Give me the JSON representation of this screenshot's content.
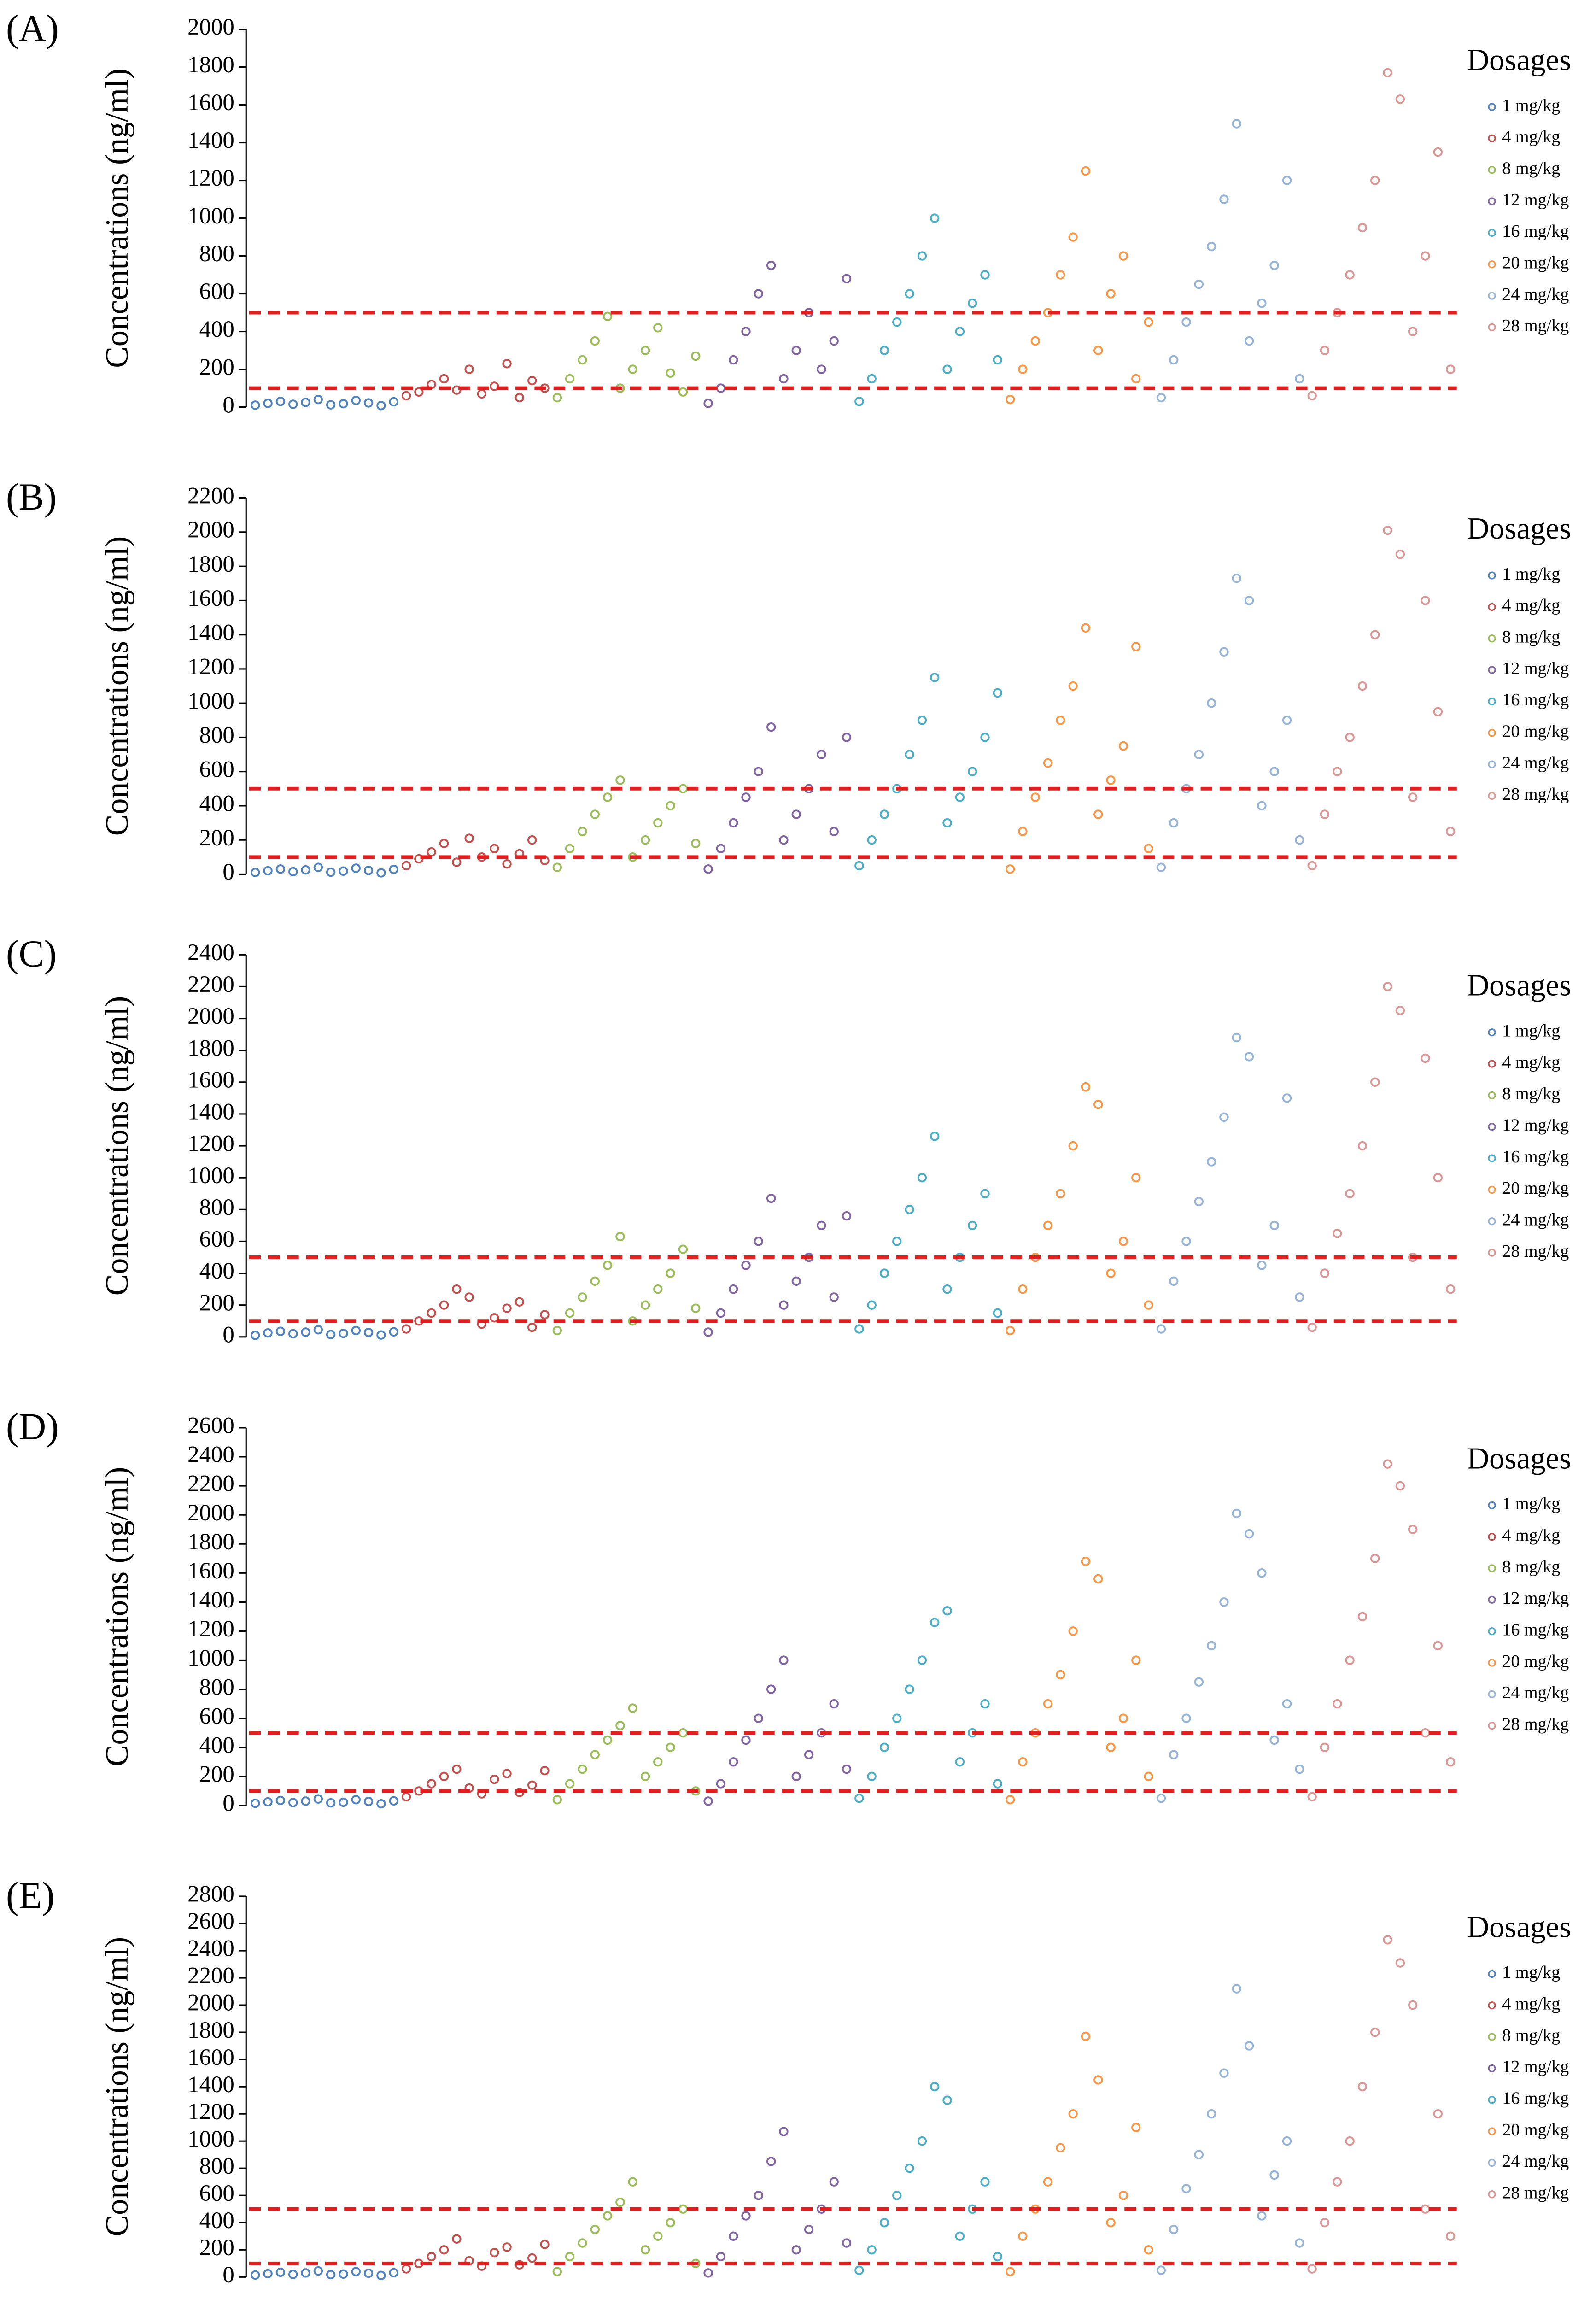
{
  "chart_data": [
    {
      "type": "scatter",
      "panel_label": "(A)",
      "ylabel": "Concentrations (ng/ml)",
      "legend_title": "Dosages",
      "ylim": [
        0,
        2000
      ],
      "yticks": [
        0,
        200,
        400,
        600,
        800,
        1000,
        1200,
        1400,
        1600,
        1800,
        2000
      ],
      "reference_lines": [
        100,
        500
      ],
      "reference_color": "#e02020",
      "series": [
        {
          "name": "1 mg/kg",
          "color": "#4f81bd",
          "values": [
            10,
            20,
            30,
            15,
            25,
            40,
            12,
            18,
            35,
            22,
            8,
            28
          ]
        },
        {
          "name": "4 mg/kg",
          "color": "#c0504d",
          "values": [
            60,
            80,
            120,
            150,
            90,
            200,
            70,
            110,
            230,
            50,
            140,
            100
          ]
        },
        {
          "name": "8 mg/kg",
          "color": "#9bbb59",
          "values": [
            50,
            150,
            250,
            350,
            480,
            100,
            200,
            300,
            420,
            180,
            80,
            270
          ]
        },
        {
          "name": "12 mg/kg",
          "color": "#8064a2",
          "values": [
            20,
            100,
            250,
            400,
            600,
            750,
            150,
            300,
            500,
            200,
            350,
            680
          ]
        },
        {
          "name": "16 mg/kg",
          "color": "#4bacc6",
          "values": [
            30,
            150,
            300,
            450,
            600,
            800,
            1000,
            200,
            400,
            550,
            700,
            250
          ]
        },
        {
          "name": "20 mg/kg",
          "color": "#f79646",
          "values": [
            40,
            200,
            350,
            500,
            700,
            900,
            1250,
            300,
            600,
            800,
            150,
            450
          ]
        },
        {
          "name": "24 mg/kg",
          "color": "#95b3d7",
          "values": [
            50,
            250,
            450,
            650,
            850,
            1100,
            1500,
            350,
            550,
            750,
            1200,
            150
          ]
        },
        {
          "name": "28 mg/kg",
          "color": "#d99694",
          "values": [
            60,
            300,
            500,
            700,
            950,
            1200,
            1770,
            1630,
            400,
            800,
            1350,
            200
          ]
        }
      ]
    },
    {
      "type": "scatter",
      "panel_label": "(B)",
      "ylabel": "Concentrations (ng/ml)",
      "legend_title": "Dosages",
      "ylim": [
        0,
        2200
      ],
      "yticks": [
        0,
        200,
        400,
        600,
        800,
        1000,
        1200,
        1400,
        1600,
        1800,
        2000,
        2200
      ],
      "reference_lines": [
        100,
        500
      ],
      "reference_color": "#e02020",
      "series": [
        {
          "name": "1 mg/kg",
          "color": "#4f81bd",
          "values": [
            10,
            20,
            30,
            15,
            25,
            40,
            12,
            18,
            35,
            22,
            8,
            28
          ]
        },
        {
          "name": "4 mg/kg",
          "color": "#c0504d",
          "values": [
            50,
            90,
            130,
            180,
            70,
            210,
            100,
            150,
            60,
            120,
            200,
            80
          ]
        },
        {
          "name": "8 mg/kg",
          "color": "#9bbb59",
          "values": [
            40,
            150,
            250,
            350,
            450,
            550,
            100,
            200,
            300,
            400,
            500,
            180
          ]
        },
        {
          "name": "12 mg/kg",
          "color": "#8064a2",
          "values": [
            30,
            150,
            300,
            450,
            600,
            860,
            200,
            350,
            500,
            700,
            250,
            800
          ]
        },
        {
          "name": "16 mg/kg",
          "color": "#4bacc6",
          "values": [
            50,
            200,
            350,
            500,
            700,
            900,
            1150,
            300,
            450,
            600,
            800,
            1060
          ]
        },
        {
          "name": "20 mg/kg",
          "color": "#f79646",
          "values": [
            30,
            250,
            450,
            650,
            900,
            1100,
            1440,
            350,
            550,
            750,
            1330,
            150
          ]
        },
        {
          "name": "24 mg/kg",
          "color": "#95b3d7",
          "values": [
            40,
            300,
            500,
            700,
            1000,
            1300,
            1730,
            1600,
            400,
            600,
            900,
            200
          ]
        },
        {
          "name": "28 mg/kg",
          "color": "#d99694",
          "values": [
            50,
            350,
            600,
            800,
            1100,
            1400,
            2010,
            1870,
            450,
            1600,
            950,
            250
          ]
        }
      ]
    },
    {
      "type": "scatter",
      "panel_label": "(C)",
      "ylabel": "Concentrations (ng/ml)",
      "legend_title": "Dosages",
      "ylim": [
        0,
        2400
      ],
      "yticks": [
        0,
        200,
        400,
        600,
        800,
        1000,
        1200,
        1400,
        1600,
        1800,
        2000,
        2200,
        2400
      ],
      "reference_lines": [
        100,
        500
      ],
      "reference_color": "#e02020",
      "series": [
        {
          "name": "1 mg/kg",
          "color": "#4f81bd",
          "values": [
            10,
            25,
            35,
            20,
            30,
            45,
            15,
            22,
            40,
            28,
            12,
            32
          ]
        },
        {
          "name": "4 mg/kg",
          "color": "#c0504d",
          "values": [
            50,
            100,
            150,
            200,
            300,
            250,
            80,
            120,
            180,
            220,
            60,
            140
          ]
        },
        {
          "name": "8 mg/kg",
          "color": "#9bbb59",
          "values": [
            40,
            150,
            250,
            350,
            450,
            630,
            100,
            200,
            300,
            400,
            550,
            180
          ]
        },
        {
          "name": "12 mg/kg",
          "color": "#8064a2",
          "values": [
            30,
            150,
            300,
            450,
            600,
            870,
            200,
            350,
            500,
            700,
            250,
            760
          ]
        },
        {
          "name": "16 mg/kg",
          "color": "#4bacc6",
          "values": [
            50,
            200,
            400,
            600,
            800,
            1000,
            1260,
            300,
            500,
            700,
            900,
            150
          ]
        },
        {
          "name": "20 mg/kg",
          "color": "#f79646",
          "values": [
            40,
            300,
            500,
            700,
            900,
            1200,
            1570,
            1460,
            400,
            600,
            1000,
            200
          ]
        },
        {
          "name": "24 mg/kg",
          "color": "#95b3d7",
          "values": [
            50,
            350,
            600,
            850,
            1100,
            1380,
            1880,
            1760,
            450,
            700,
            1500,
            250
          ]
        },
        {
          "name": "28 mg/kg",
          "color": "#d99694",
          "values": [
            60,
            400,
            650,
            900,
            1200,
            1600,
            2200,
            2050,
            500,
            1750,
            1000,
            300
          ]
        }
      ]
    },
    {
      "type": "scatter",
      "panel_label": "(D)",
      "ylabel": "Concentrations (ng/ml)",
      "legend_title": "Dosages",
      "ylim": [
        0,
        2600
      ],
      "yticks": [
        0,
        200,
        400,
        600,
        800,
        1000,
        1200,
        1400,
        1600,
        1800,
        2000,
        2200,
        2400,
        2600
      ],
      "reference_lines": [
        100,
        500
      ],
      "reference_color": "#e02020",
      "series": [
        {
          "name": "1 mg/kg",
          "color": "#4f81bd",
          "values": [
            15,
            25,
            35,
            20,
            30,
            45,
            18,
            22,
            40,
            28,
            12,
            32
          ]
        },
        {
          "name": "4 mg/kg",
          "color": "#c0504d",
          "values": [
            60,
            100,
            150,
            200,
            250,
            120,
            80,
            180,
            220,
            90,
            140,
            240
          ]
        },
        {
          "name": "8 mg/kg",
          "color": "#9bbb59",
          "values": [
            40,
            150,
            250,
            350,
            450,
            550,
            670,
            200,
            300,
            400,
            500,
            100
          ]
        },
        {
          "name": "12 mg/kg",
          "color": "#8064a2",
          "values": [
            30,
            150,
            300,
            450,
            600,
            800,
            1000,
            200,
            350,
            500,
            700,
            250
          ]
        },
        {
          "name": "16 mg/kg",
          "color": "#4bacc6",
          "values": [
            50,
            200,
            400,
            600,
            800,
            1000,
            1260,
            1340,
            300,
            500,
            700,
            150
          ]
        },
        {
          "name": "20 mg/kg",
          "color": "#f79646",
          "values": [
            40,
            300,
            500,
            700,
            900,
            1200,
            1680,
            1560,
            400,
            600,
            1000,
            200
          ]
        },
        {
          "name": "24 mg/kg",
          "color": "#95b3d7",
          "values": [
            50,
            350,
            600,
            850,
            1100,
            1400,
            2010,
            1870,
            1600,
            450,
            700,
            250
          ]
        },
        {
          "name": "28 mg/kg",
          "color": "#d99694",
          "values": [
            60,
            400,
            700,
            1000,
            1300,
            1700,
            2350,
            2200,
            1900,
            500,
            1100,
            300
          ]
        }
      ]
    },
    {
      "type": "scatter",
      "panel_label": "(E)",
      "ylabel": "Concentrations (ng/ml)",
      "legend_title": "Dosages",
      "ylim": [
        0,
        2800
      ],
      "yticks": [
        0,
        200,
        400,
        600,
        800,
        1000,
        1200,
        1400,
        1600,
        1800,
        2000,
        2200,
        2400,
        2600,
        2800
      ],
      "reference_lines": [
        100,
        500
      ],
      "reference_color": "#e02020",
      "series": [
        {
          "name": "1 mg/kg",
          "color": "#4f81bd",
          "values": [
            15,
            25,
            35,
            20,
            30,
            45,
            18,
            22,
            40,
            28,
            12,
            32
          ]
        },
        {
          "name": "4 mg/kg",
          "color": "#c0504d",
          "values": [
            60,
            100,
            150,
            200,
            280,
            120,
            80,
            180,
            220,
            90,
            140,
            240
          ]
        },
        {
          "name": "8 mg/kg",
          "color": "#9bbb59",
          "values": [
            40,
            150,
            250,
            350,
            450,
            550,
            700,
            200,
            300,
            400,
            500,
            100
          ]
        },
        {
          "name": "12 mg/kg",
          "color": "#8064a2",
          "values": [
            30,
            150,
            300,
            450,
            600,
            850,
            1070,
            200,
            350,
            500,
            700,
            250
          ]
        },
        {
          "name": "16 mg/kg",
          "color": "#4bacc6",
          "values": [
            50,
            200,
            400,
            600,
            800,
            1000,
            1400,
            1300,
            300,
            500,
            700,
            150
          ]
        },
        {
          "name": "20 mg/kg",
          "color": "#f79646",
          "values": [
            40,
            300,
            500,
            700,
            950,
            1200,
            1770,
            1450,
            400,
            600,
            1100,
            200
          ]
        },
        {
          "name": "24 mg/kg",
          "color": "#95b3d7",
          "values": [
            50,
            350,
            650,
            900,
            1200,
            1500,
            2120,
            1700,
            450,
            750,
            1000,
            250
          ]
        },
        {
          "name": "28 mg/kg",
          "color": "#d99694",
          "values": [
            60,
            400,
            700,
            1000,
            1400,
            1800,
            2480,
            2310,
            2000,
            500,
            1200,
            300
          ]
        }
      ]
    }
  ]
}
